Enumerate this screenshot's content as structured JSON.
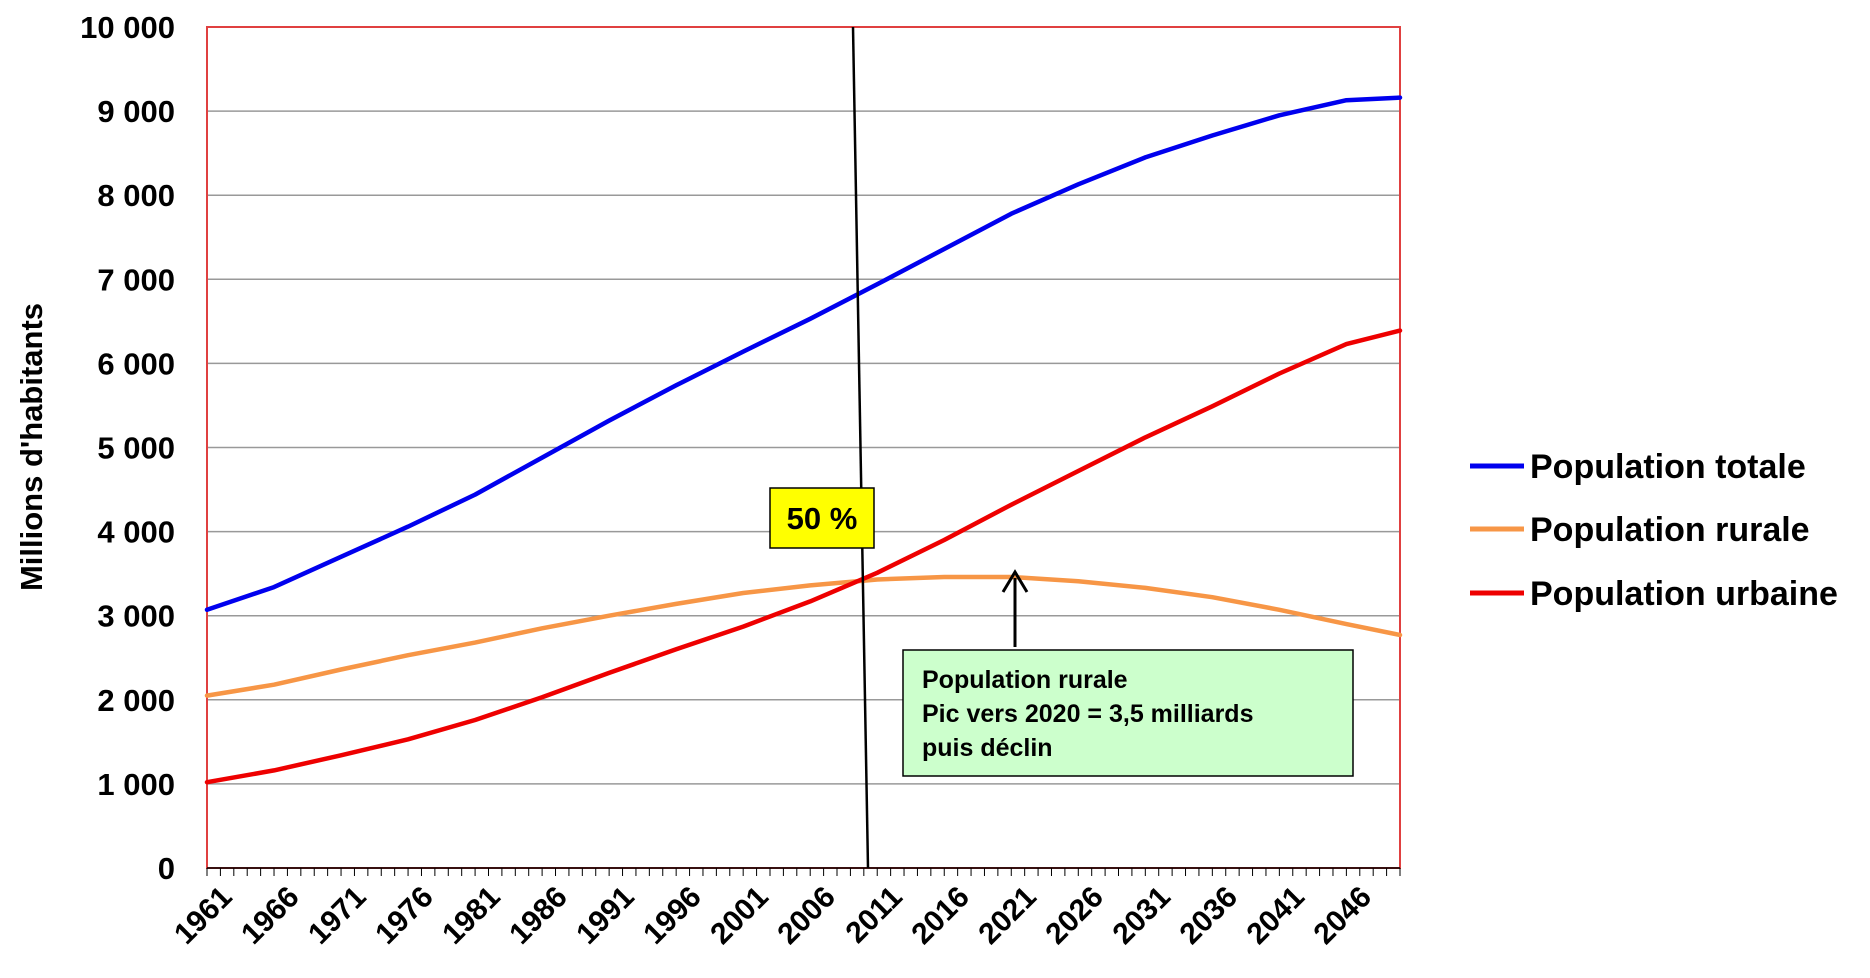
{
  "chart_data": {
    "type": "line",
    "ylabel": "Millions d'habitants",
    "xlabel": "",
    "ylim": [
      0,
      10000
    ],
    "y_ticks": [
      0,
      1000,
      2000,
      3000,
      4000,
      5000,
      6000,
      7000,
      8000,
      9000,
      10000
    ],
    "y_tick_labels": [
      "0",
      "1 000",
      "2 000",
      "3 000",
      "4 000",
      "5 000",
      "6 000",
      "7 000",
      "8 000",
      "9 000",
      "10 000"
    ],
    "x_range": [
      1961,
      2050
    ],
    "x_tick_labels": [
      "1961",
      "1966",
      "1971",
      "1976",
      "1981",
      "1986",
      "1991",
      "1996",
      "2001",
      "2006",
      "2011",
      "2016",
      "2021",
      "2026",
      "2031",
      "2036",
      "2041",
      "2046"
    ],
    "grid": "horizontal",
    "legend_position": "right",
    "x": [
      1961,
      1966,
      1971,
      1976,
      1981,
      1986,
      1991,
      1996,
      2001,
      2006,
      2011,
      2016,
      2021,
      2026,
      2031,
      2036,
      2041,
      2046,
      2050
    ],
    "series": [
      {
        "name": "Population totale",
        "color": "#0000ee",
        "values": [
          3070,
          3340,
          3700,
          4060,
          4440,
          4880,
          5320,
          5740,
          6140,
          6530,
          6940,
          7360,
          7780,
          8130,
          8450,
          8710,
          8950,
          9130,
          9160
        ]
      },
      {
        "name": "Population rurale",
        "color": "#f79646",
        "values": [
          2050,
          2180,
          2360,
          2530,
          2680,
          2850,
          3000,
          3140,
          3270,
          3360,
          3430,
          3460,
          3460,
          3410,
          3330,
          3220,
          3070,
          2900,
          2770
        ]
      },
      {
        "name": "Population urbaine",
        "color": "#ee0000",
        "values": [
          1020,
          1160,
          1340,
          1530,
          1760,
          2030,
          2320,
          2600,
          2870,
          3170,
          3510,
          3900,
          4320,
          4720,
          5120,
          5490,
          5880,
          6230,
          6390
        ]
      }
    ],
    "annotations": {
      "fifty_percent_label": "50 %",
      "fifty_percent_year": 2010,
      "rural_peak_lines": [
        "Population rurale",
        "Pic vers 2020 = 3,5 milliards",
        "puis déclin"
      ],
      "rural_peak_arrow_year": 2021,
      "rural_peak_arrow_value": 3500
    },
    "colors": {
      "plot_border": "#e04040",
      "gridline": "#999999",
      "vertical_marker": "#000000",
      "fifty_box_fill": "#ffff00",
      "peak_box_fill": "#ccffcc"
    }
  }
}
